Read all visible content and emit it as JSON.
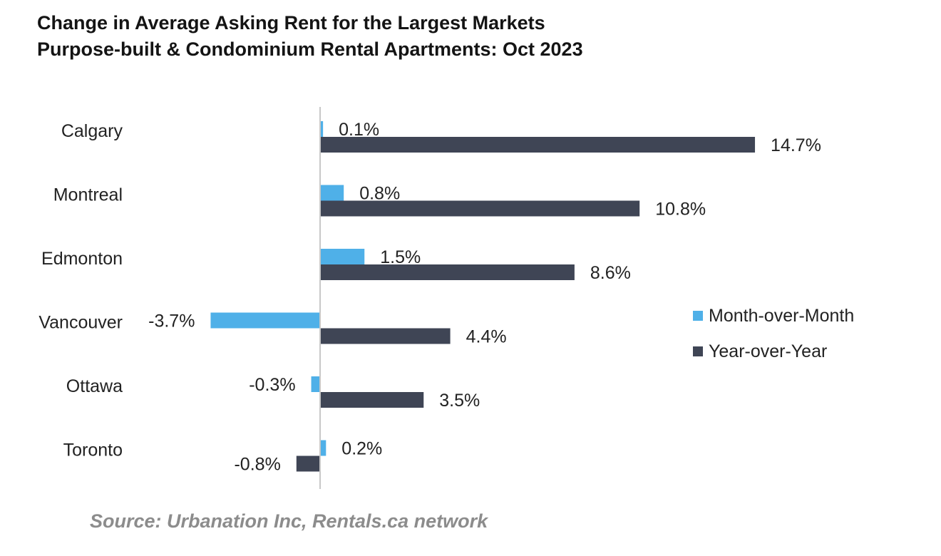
{
  "title_line1": "Change in Average Asking Rent for the Largest Markets",
  "title_line2": "Purpose-built & Condominium Rental Apartments: Oct 2023",
  "source": "Source: Urbanation Inc, Rentals.ca network",
  "chart_data": {
    "type": "bar",
    "orientation": "horizontal",
    "categories": [
      "Calgary",
      "Montreal",
      "Edmonton",
      "Vancouver",
      "Ottawa",
      "Toronto"
    ],
    "series": [
      {
        "name": "Month-over-Month",
        "color": "#4fb0e8",
        "values": [
          0.1,
          0.8,
          1.5,
          -3.7,
          -0.3,
          0.2
        ],
        "labels": [
          "0.1%",
          "0.8%",
          "1.5%",
          "-3.7%",
          "-0.3%",
          "0.2%"
        ]
      },
      {
        "name": "Year-over-Year",
        "color": "#3f4555",
        "values": [
          14.7,
          10.8,
          8.6,
          4.4,
          3.5,
          -0.8
        ],
        "labels": [
          "14.7%",
          "10.8%",
          "8.6%",
          "4.4%",
          "3.5%",
          "-0.8%"
        ]
      }
    ],
    "unit": "%",
    "grid": false,
    "legend_position": "right"
  }
}
